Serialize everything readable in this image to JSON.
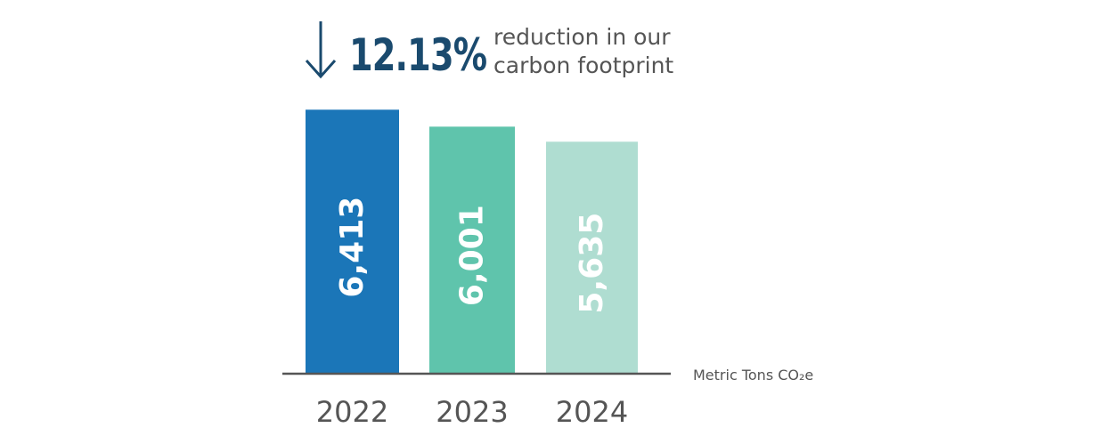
{
  "headline": {
    "arrow_icon": "arrow-down-icon",
    "percent": "12.13%",
    "line1": "reduction in our",
    "line2": "carbon footprint",
    "color": "#1a4a6e"
  },
  "chart_data": {
    "type": "bar",
    "categories": [
      "2022",
      "2023",
      "2024"
    ],
    "values": [
      6413,
      6001,
      5635
    ],
    "value_labels": [
      "6,413",
      "6,001",
      "5,635"
    ],
    "colors": [
      "#1b76b8",
      "#5fc4ac",
      "#afddd1"
    ],
    "unit_label": "Metric Tons CO₂e",
    "ylim": [
      0,
      6700
    ],
    "grid": false
  }
}
